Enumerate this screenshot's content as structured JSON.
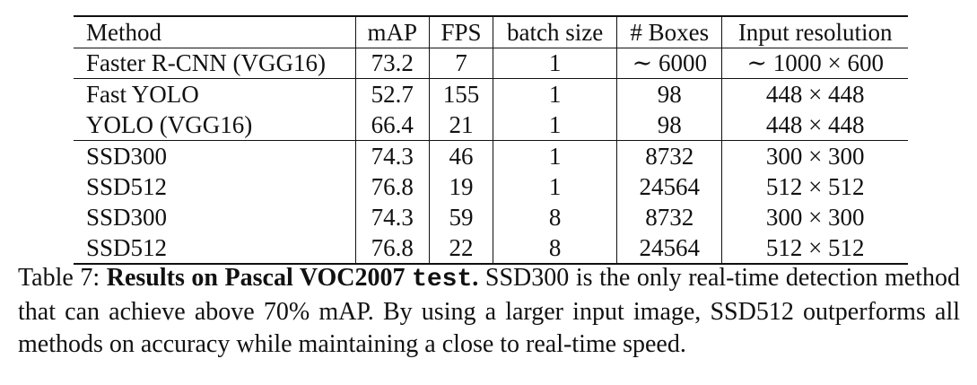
{
  "table": {
    "headers": [
      "Method",
      "mAP",
      "FPS",
      "batch size",
      "# Boxes",
      "Input resolution"
    ],
    "groups": [
      [
        [
          "Faster R-CNN (VGG16)",
          "73.2",
          "7",
          "1",
          "∼ 6000",
          "∼ 1000 × 600"
        ]
      ],
      [
        [
          "Fast YOLO",
          "52.7",
          "155",
          "1",
          "98",
          "448 × 448"
        ],
        [
          "YOLO (VGG16)",
          "66.4",
          "21",
          "1",
          "98",
          "448 × 448"
        ]
      ],
      [
        [
          "SSD300",
          "74.3",
          "46",
          "1",
          "8732",
          "300 × 300"
        ],
        [
          "SSD512",
          "76.8",
          "19",
          "1",
          "24564",
          "512 × 512"
        ],
        [
          "SSD300",
          "74.3",
          "59",
          "8",
          "8732",
          "300 × 300"
        ],
        [
          "SSD512",
          "76.8",
          "22",
          "8",
          "24564",
          "512 × 512"
        ]
      ]
    ]
  },
  "caption": {
    "label": "Table 7:",
    "bold_title": "Results on Pascal VOC2007",
    "mono_word": "test",
    "bold_period": ".",
    "body": "SSD300 is the only real-time detection method that can achieve above 70% mAP. By using a larger input image, SSD512 outperforms all methods on accuracy while maintaining a close to real-time speed."
  }
}
